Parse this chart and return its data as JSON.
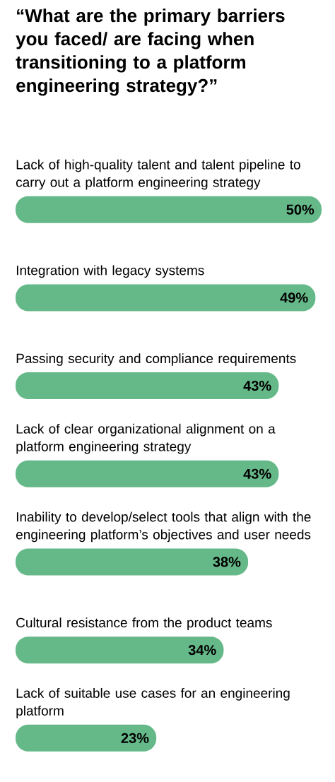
{
  "chart_data": {
    "type": "bar",
    "orientation": "horizontal",
    "title": "“What are the primary barriers you faced/ are facing when transitioning to a platform engineering strategy?”",
    "categories": [
      "Lack of high-quality talent and talent pipeline to carry out a platform engineering strategy",
      "Integration with legacy systems",
      "Passing security and compliance requirements",
      "Lack of clear organizational alignment on a platform engineering strategy",
      "Inability to develop/select tools that align with the engineering platform’s objectives and user needs",
      "Cultural resistance from the product teams",
      "Lack of suitable use cases for an engineering platform"
    ],
    "values": [
      50,
      49,
      43,
      43,
      38,
      34,
      23
    ],
    "value_labels": [
      "50%",
      "49%",
      "43%",
      "43%",
      "38%",
      "34%",
      "23%"
    ],
    "color": "#65b888"
  }
}
